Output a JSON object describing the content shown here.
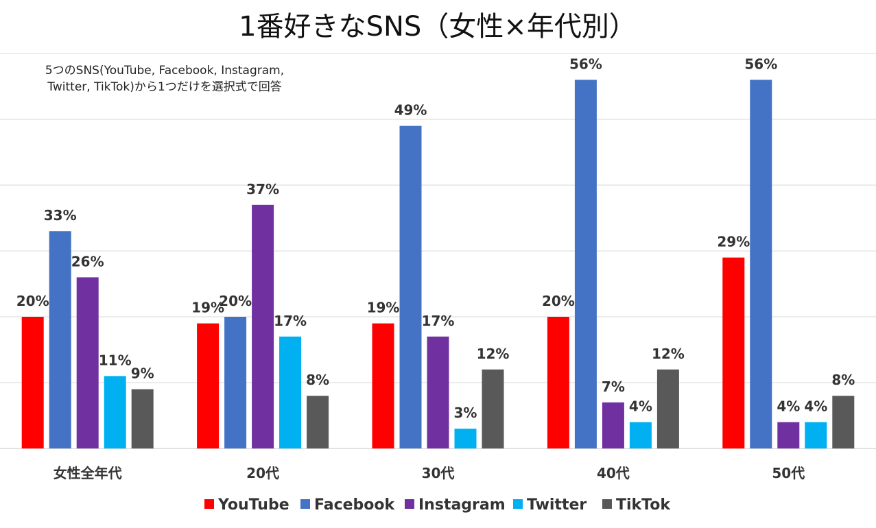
{
  "chart_data": {
    "type": "bar",
    "title": "1番好きなSNS（女性×年代別）",
    "note_lines": [
      "5つのSNS(YouTube, Facebook, Instagram,",
      "Twitter, TikTok)から1つだけを選択式で回答"
    ],
    "categories": [
      "女性全年代",
      "20代",
      "30代",
      "40代",
      "50代"
    ],
    "series": [
      {
        "name": "YouTube",
        "color": "#ff0000",
        "values": [
          20,
          19,
          19,
          20,
          29
        ]
      },
      {
        "name": "Facebook",
        "color": "#4472c4",
        "values": [
          33,
          20,
          49,
          56,
          56
        ]
      },
      {
        "name": "Instagram",
        "color": "#7030a0",
        "values": [
          26,
          37,
          17,
          7,
          4
        ]
      },
      {
        "name": "Twitter",
        "color": "#00b0f0",
        "values": [
          11,
          17,
          3,
          4,
          4
        ]
      },
      {
        "name": "TikTok",
        "color": "#595959",
        "values": [
          9,
          8,
          12,
          12,
          8
        ]
      }
    ],
    "value_suffix": "%",
    "ylim": [
      0,
      60
    ],
    "grid": true,
    "legend_position": "bottom"
  }
}
